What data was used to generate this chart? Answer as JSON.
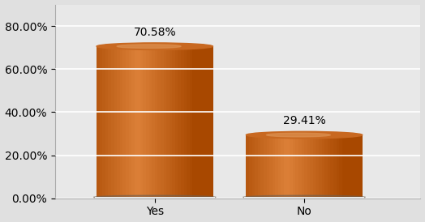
{
  "categories": [
    "Yes",
    "No"
  ],
  "values": [
    70.58,
    29.41
  ],
  "labels": [
    "70.58%",
    "29.41%"
  ],
  "bar_color_dark": "#A84800",
  "bar_color_mid": "#C8620A",
  "bar_color_light": "#D98040",
  "bar_top_color": "#C06020",
  "bar_shadow_color": "#806040",
  "ylim": [
    0,
    90
  ],
  "ytick_vals": [
    0,
    20,
    40,
    60,
    80
  ],
  "ytick_labels": [
    "0.00%",
    "20.00%",
    "40.00%",
    "60.00%",
    "80.00%"
  ],
  "background_color": "#E0E0E0",
  "plot_bg_color": "#E8E8E8",
  "grid_color": "#FFFFFF",
  "label_fontsize": 10,
  "tick_fontsize": 10,
  "bar_width": 0.35,
  "x_positions": [
    0.3,
    0.75
  ],
  "xlim": [
    0.0,
    1.1
  ]
}
